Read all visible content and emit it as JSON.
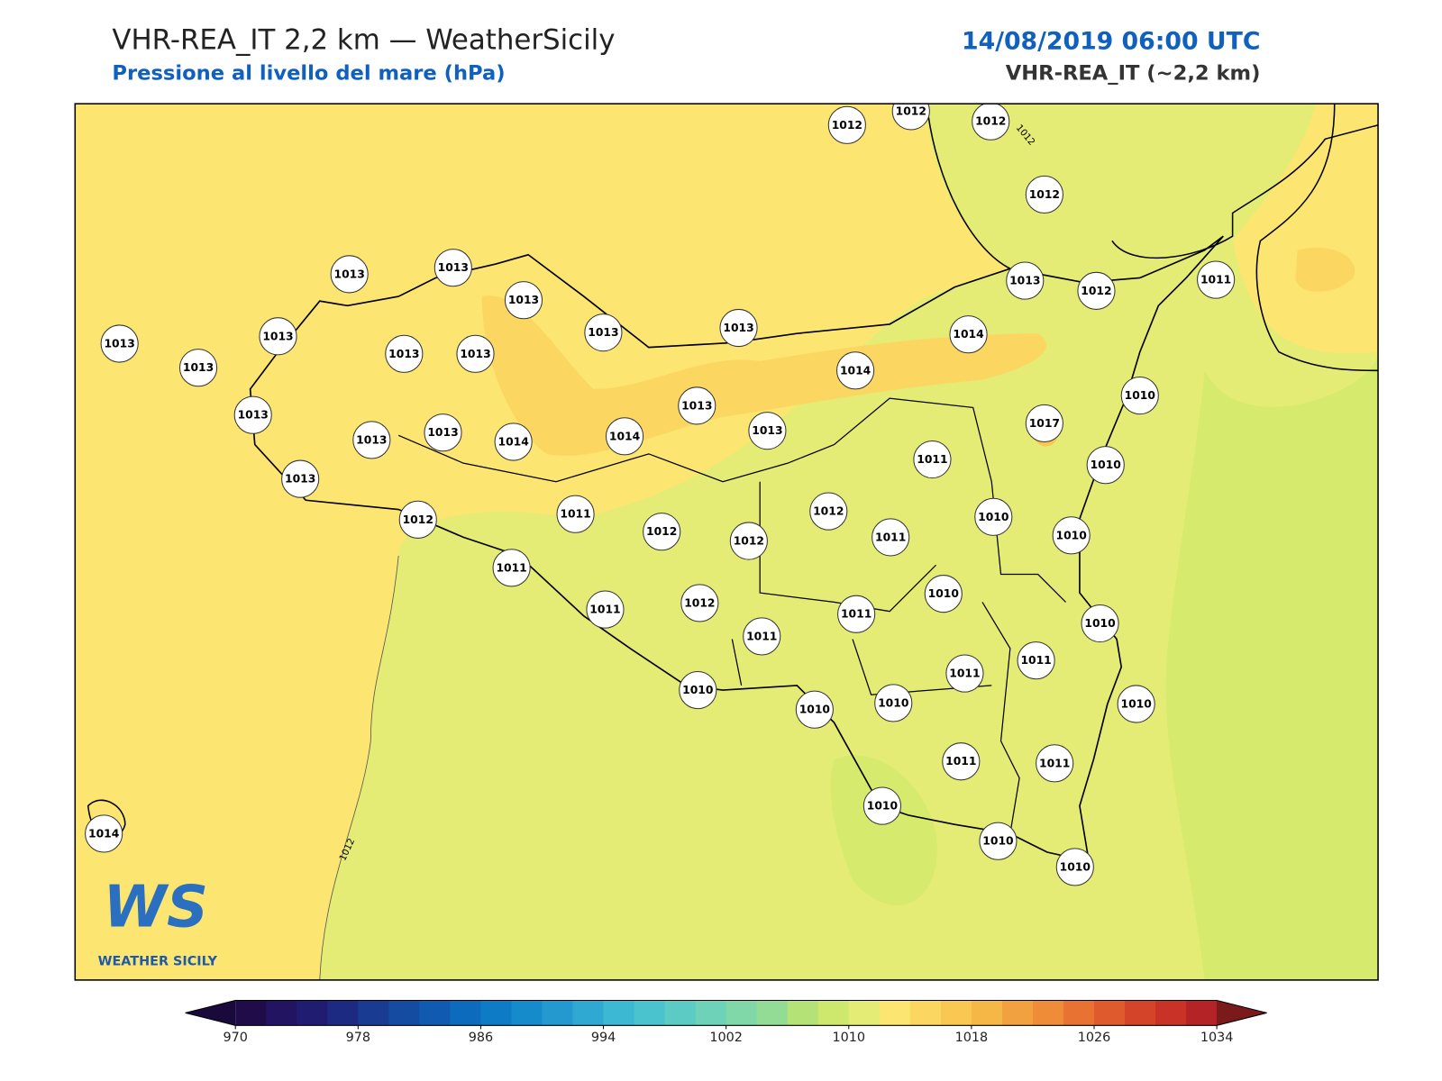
{
  "header": {
    "title": "VHR-REA_IT 2,2 km — WeatherSicily",
    "subtitle": "Pressione al livello del mare (hPa)",
    "datetime": "14/08/2019 06:00 UTC",
    "model": "VHR-REA_IT (~2,2 km)"
  },
  "map": {
    "stations": [
      1012,
      1012,
      1012,
      1012,
      1013,
      1013,
      1013,
      1013,
      1013,
      1013,
      1012,
      1011,
      1013,
      1013,
      1013,
      1013,
      1013,
      1014,
      1014,
      1013,
      1013,
      1013,
      1013,
      1014,
      1014,
      1013,
      1017,
      1010,
      1013,
      1011,
      1010,
      1012,
      1011,
      1012,
      1012,
      1012,
      1011,
      1010,
      1010,
      1011,
      1010,
      1011,
      1012,
      1011,
      1011,
      1010,
      1011,
      1011,
      1010,
      1010,
      1010,
      1010,
      1011,
      1011,
      1010,
      1010,
      1010,
      1014
    ],
    "contour_labels": [
      1012,
      1012
    ]
  },
  "logo": {
    "letters": "WS",
    "caption": "WEATHER SICILY"
  },
  "colorbar": {
    "lim": [
      970,
      1034
    ],
    "ticks": [
      970,
      978,
      986,
      994,
      1002,
      1010,
      1018,
      1026,
      1034
    ],
    "colors": [
      "#1f0c48",
      "#231462",
      "#201c72",
      "#1d2a82",
      "#193b92",
      "#144ca1",
      "#105bb0",
      "#0c6bbd",
      "#0d7bc6",
      "#168bcc",
      "#2399cf",
      "#30a9d2",
      "#3cb8d2",
      "#4ac3ce",
      "#5ccbc4",
      "#6dd2b8",
      "#80d8a8",
      "#93dc95",
      "#b5e276",
      "#cde86c",
      "#e4ec75",
      "#fce570",
      "#fbd762",
      "#f8c852",
      "#f5b847",
      "#f1a13f",
      "#ee8c38",
      "#e87232",
      "#df5a2c",
      "#d34428",
      "#c83227",
      "#b42326"
    ],
    "under_color": "#1a0a3c",
    "over_color": "#7a1a1a"
  }
}
